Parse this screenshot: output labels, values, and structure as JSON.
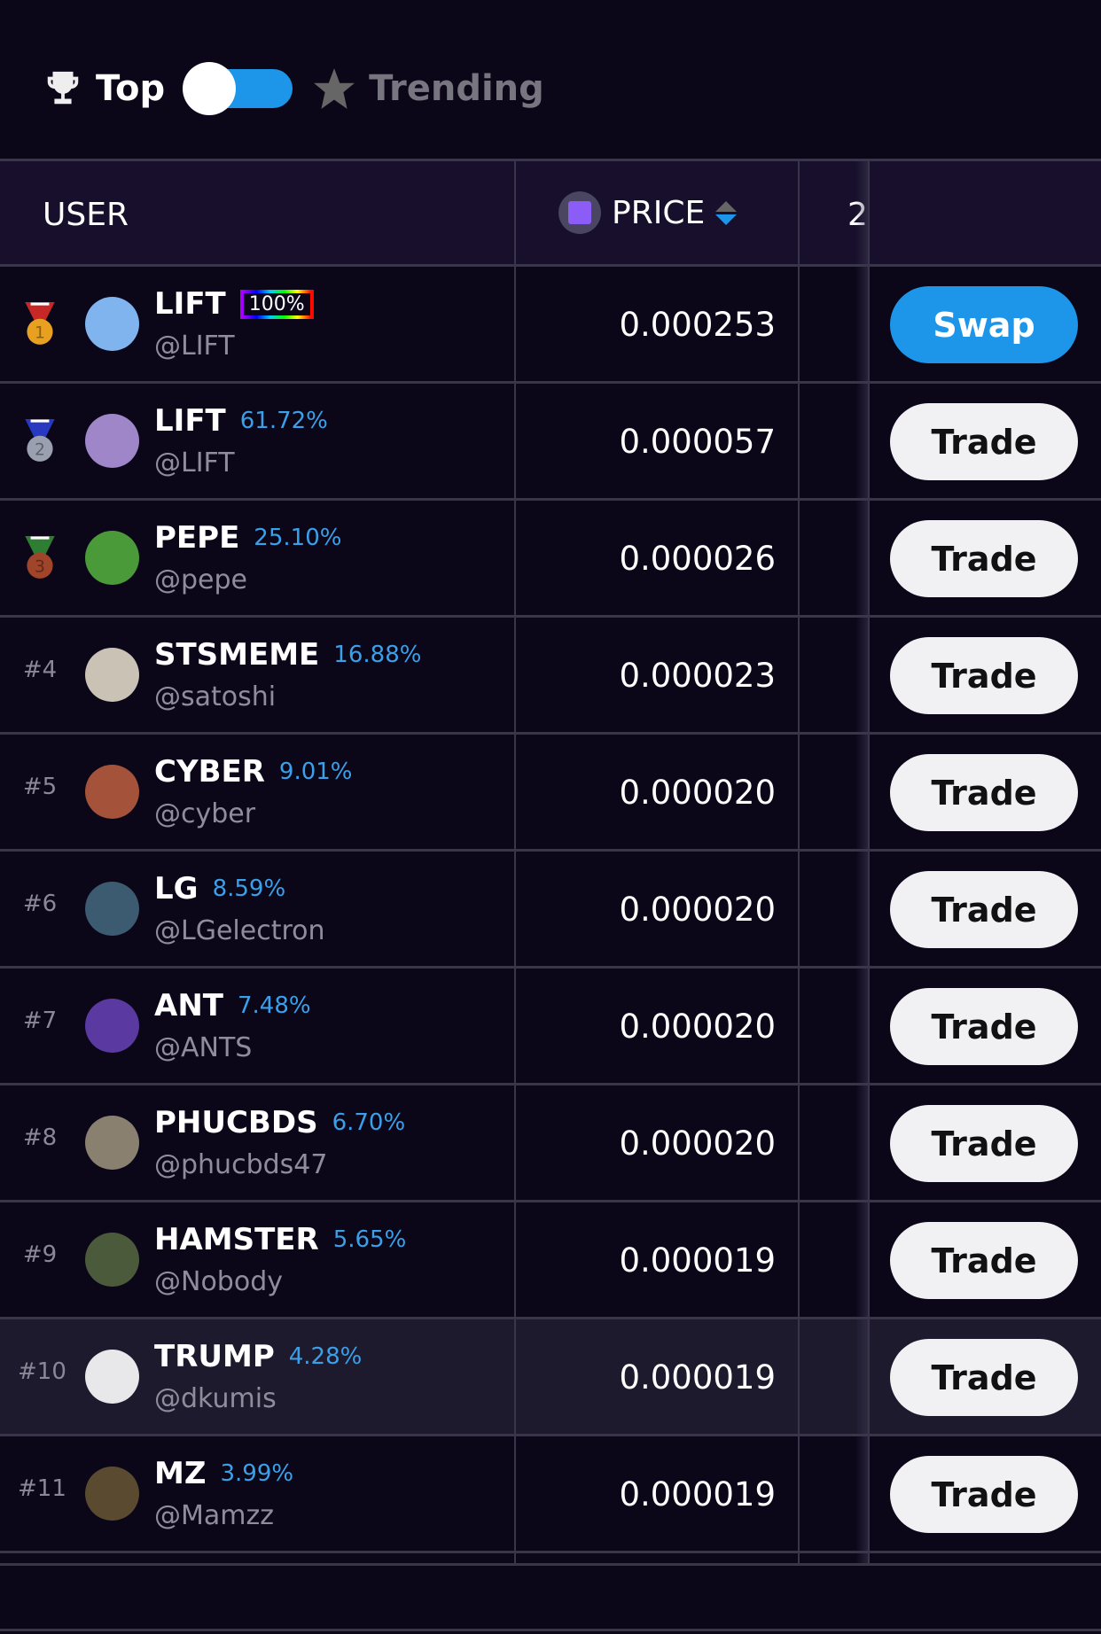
{
  "filter": {
    "top_label": "Top",
    "trending_label": "Trending",
    "toggle_on": true,
    "toggle_color": "#1d96ea"
  },
  "table": {
    "headers": {
      "user": "USER",
      "price": "PRICE",
      "col3": "2"
    },
    "rows": [
      {
        "rank": "1",
        "medal": "gold",
        "name": "LIFT",
        "pct": "100%",
        "handle": "@LIFT",
        "price": "0.000253",
        "action": "Swap",
        "avatar": "#7fb4ee"
      },
      {
        "rank": "2",
        "medal": "silver",
        "name": "LIFT",
        "pct": "61.72%",
        "handle": "@LIFT",
        "price": "0.000057",
        "action": "Trade",
        "avatar": "#9f86c8"
      },
      {
        "rank": "3",
        "medal": "bronze",
        "name": "PEPE",
        "pct": "25.10%",
        "handle": "@pepe",
        "price": "0.000026",
        "action": "Trade",
        "avatar": "#4a9a3a"
      },
      {
        "rank": "#4",
        "name": "STSMEME",
        "pct": "16.88%",
        "handle": "@satoshi",
        "price": "0.000023",
        "action": "Trade",
        "avatar": "#c9c2b5"
      },
      {
        "rank": "#5",
        "name": "CYBER",
        "pct": "9.01%",
        "handle": "@cyber",
        "price": "0.000020",
        "action": "Trade",
        "avatar": "#a5523a"
      },
      {
        "rank": "#6",
        "name": "LG",
        "pct": "8.59%",
        "handle": "@LGelectron",
        "price": "0.000020",
        "action": "Trade",
        "avatar": "#3c5a70"
      },
      {
        "rank": "#7",
        "name": "ANT",
        "pct": "7.48%",
        "handle": "@ANTS",
        "price": "0.000020",
        "action": "Trade",
        "avatar": "#5a3aa0"
      },
      {
        "rank": "#8",
        "name": "PHUCBDS",
        "pct": "6.70%",
        "handle": "@phucbds47",
        "price": "0.000020",
        "action": "Trade",
        "avatar": "#8a8070"
      },
      {
        "rank": "#9",
        "name": "HAMSTER",
        "pct": "5.65%",
        "handle": "@Nobody",
        "price": "0.000019",
        "action": "Trade",
        "avatar": "#4a5a3a"
      },
      {
        "rank": "#10",
        "name": "TRUMP",
        "pct": "4.28%",
        "handle": "@dkumis",
        "price": "0.000019",
        "action": "Trade",
        "avatar": "#e8e8ea",
        "highlight": true
      },
      {
        "rank": "#11",
        "name": "MZ",
        "pct": "3.99%",
        "handle": "@Mamzz",
        "price": "0.000019",
        "action": "Trade",
        "avatar": "#5a4a30"
      }
    ]
  }
}
